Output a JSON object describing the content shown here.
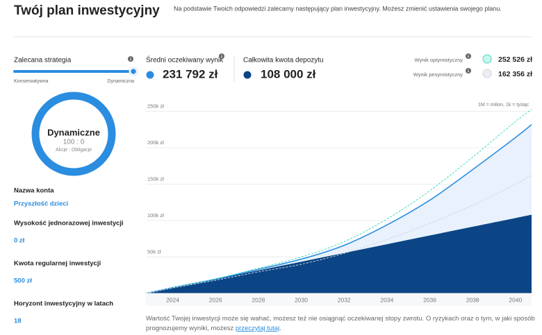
{
  "header": {
    "title": "Twój plan inwestycyjny",
    "subtitle": "Na podstawie Twoich odpowiedzi zalecamy następujący plan inwestycyjny. Możesz zmienić ustawienia swojego planu."
  },
  "strategy": {
    "label": "Zalecana strategia",
    "min_label": "Konserwatywna",
    "max_label": "Dynamiczna",
    "name": "Dynamiczne",
    "ratio": "100 : 0",
    "ratio_label": "Akcje : Obligacje"
  },
  "fields": [
    {
      "label": "Nazwa konta",
      "value": "Przyszłość dzieci"
    },
    {
      "label": "Wysokość jednorazowej inwestycji",
      "value": "0 zł"
    },
    {
      "label": "Kwota regularnej inwestycji",
      "value": "500 zł"
    },
    {
      "label": "Horyzont inwestycyjny w latach",
      "value": "18"
    }
  ],
  "chart_data": {
    "type": "area",
    "annotation": "1M = milion, 1k = tysiąc",
    "x": [
      2022.75,
      2024,
      2026,
      2028,
      2030,
      2032,
      2034,
      2036,
      2038,
      2040,
      2040.75
    ],
    "xlim": [
      2022.75,
      2040.75
    ],
    "xticks": [
      2024,
      2026,
      2028,
      2030,
      2032,
      2034,
      2036,
      2038,
      2040
    ],
    "ylim": [
      0,
      265000
    ],
    "yticks": [
      {
        "value": 50000,
        "label": "50k zł"
      },
      {
        "value": 100000,
        "label": "100k zł"
      },
      {
        "value": 150000,
        "label": "150k zł"
      },
      {
        "value": 200000,
        "label": "200k zł"
      },
      {
        "value": 250000,
        "label": "250k zł"
      }
    ],
    "grid": true,
    "series": [
      {
        "name": "Średni oczekiwany wynik",
        "total": "231 792 zł",
        "color": "#2a8de0",
        "fill": "#e8f1fc",
        "dashed": false,
        "values": [
          0,
          8000,
          19500,
          33000,
          47000,
          66000,
          94000,
          128000,
          170000,
          214000,
          231792
        ]
      },
      {
        "name": "Całkowita kwota depozytu",
        "total": "108 000 zł",
        "color": "#0b4585",
        "fill": "#0b4585",
        "dashed": false,
        "values": [
          0,
          7500,
          19500,
          31500,
          43500,
          55500,
          67500,
          79500,
          91500,
          103500,
          108000
        ]
      },
      {
        "name": "Wynik optymistyczny",
        "total": "252 526 zł",
        "color": "#3fd9c2",
        "dashed": true,
        "values": [
          0,
          8000,
          20000,
          34500,
          50000,
          71000,
          102000,
          141000,
          187000,
          236000,
          252526
        ]
      },
      {
        "name": "Wynik pesymistyczny",
        "total": "162 356 zł",
        "color": "#cfd3dc",
        "dashed": true,
        "values": [
          0,
          7500,
          18000,
          29500,
          40000,
          55000,
          74000,
          96000,
          121000,
          150000,
          162356
        ]
      }
    ]
  },
  "note": {
    "text": "Wartość Twojej inwestycji może się wahać, możesz też nie osiągnąć oczekiwanej stopy zwrotu. O ryzykach oraz o tym, w jaki sposób prognozujemy wyniki, możesz ",
    "link": "przeczytaj tutaj",
    "end": "."
  }
}
